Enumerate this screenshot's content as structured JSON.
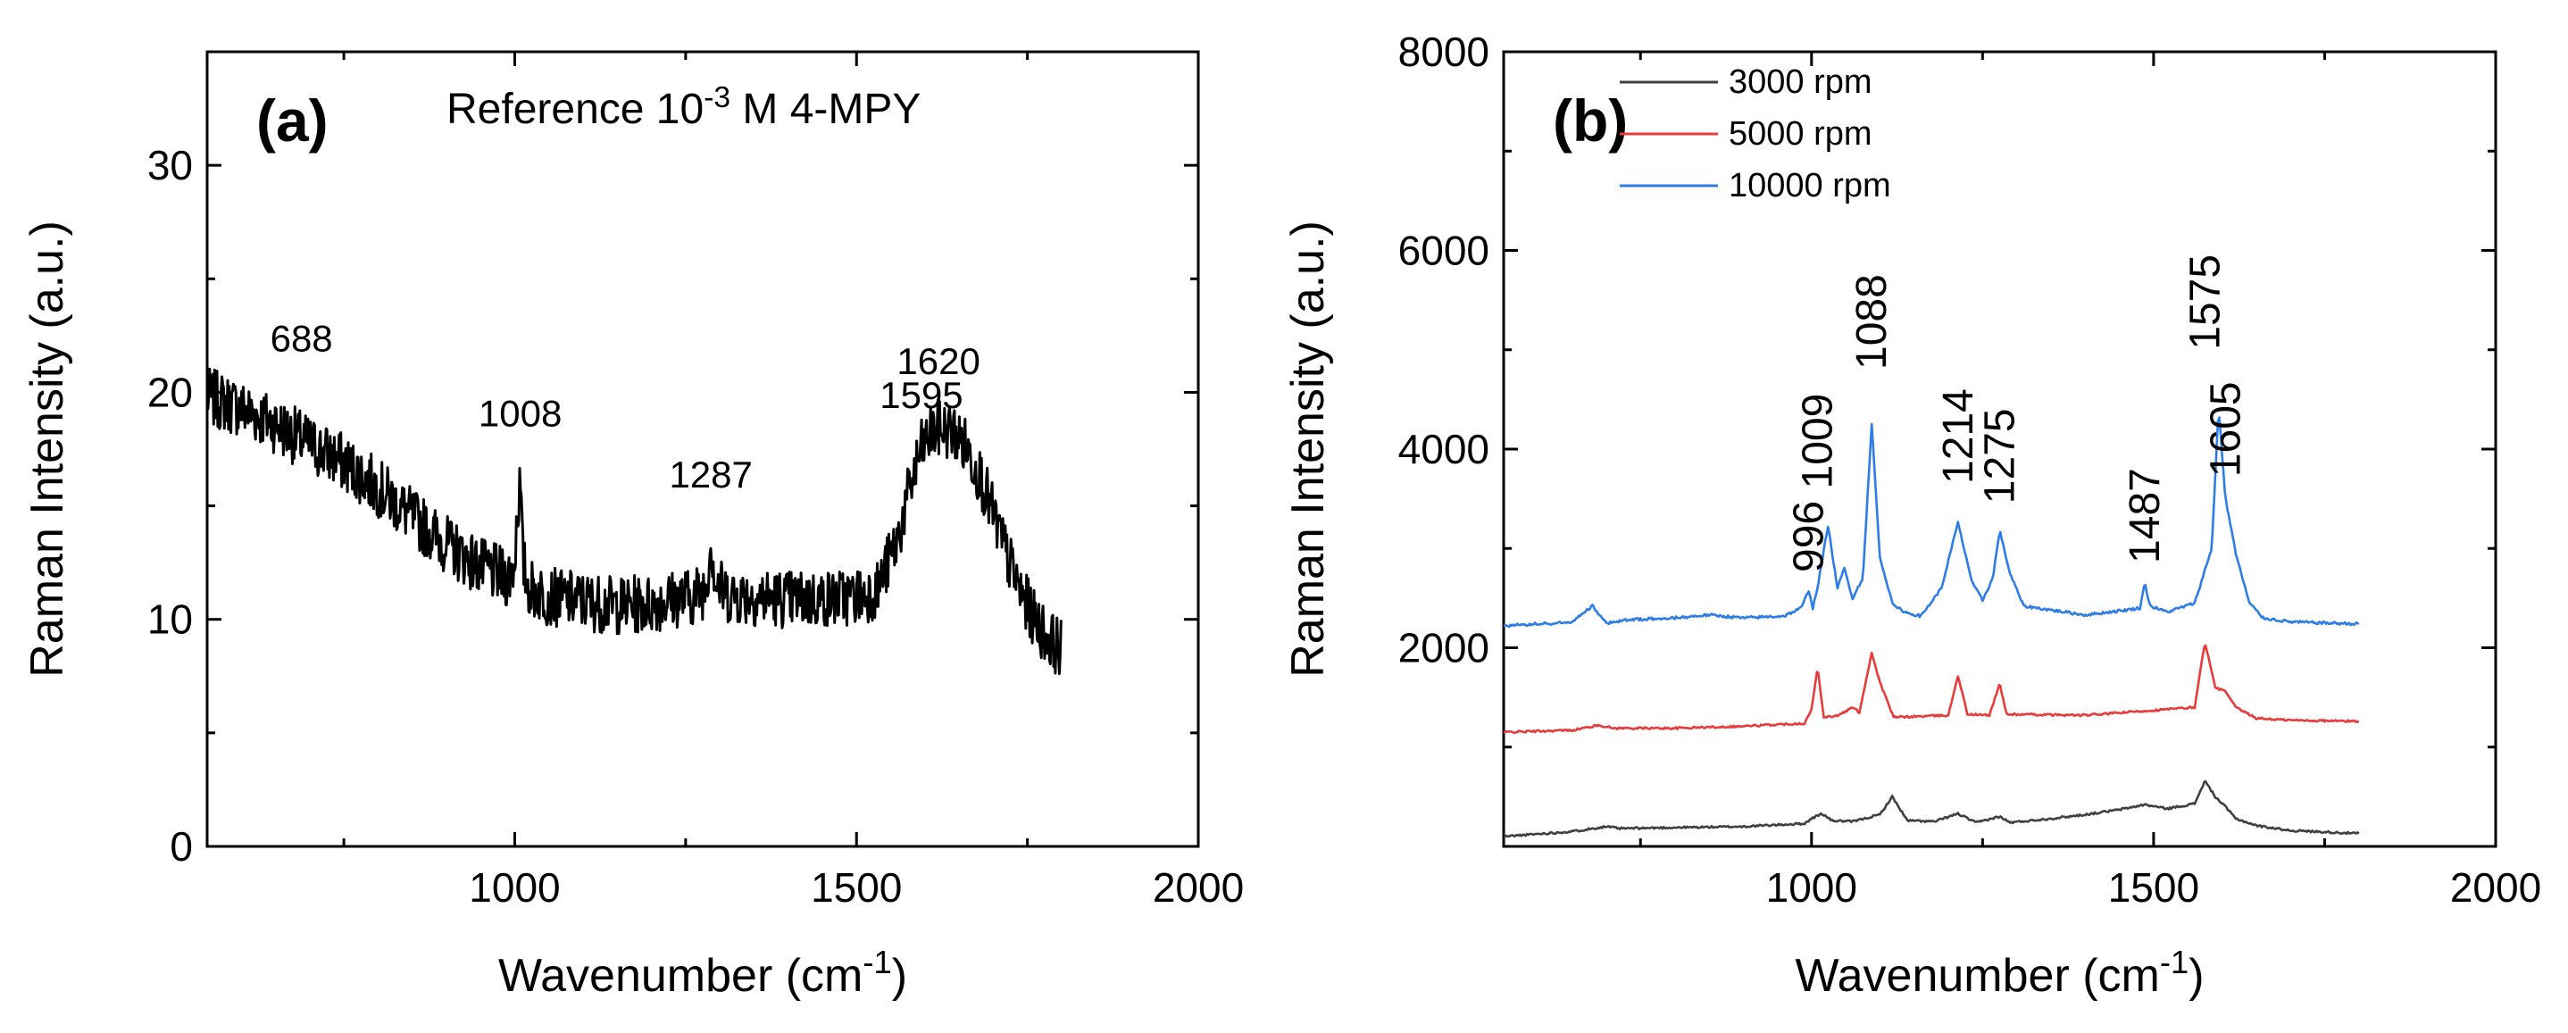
{
  "chart_data": [
    {
      "panel": "(a)",
      "type": "line",
      "title": "Reference 10",
      "title_sup": "-3",
      "title_tail": " M 4-MPY",
      "xlabel": "Wavenumber (cm",
      "xlabel_sup": "-1",
      "xlabel_tail": ")",
      "ylabel": "Raman Intensity (a.u.)",
      "xlim": [
        550,
        2000
      ],
      "ylim": [
        0,
        35
      ],
      "xticks": [
        1000,
        1500,
        2000
      ],
      "yticks": [
        0,
        10,
        20,
        30
      ],
      "color": "#000000",
      "series": [
        {
          "x": [
            550,
            600,
            650,
            700,
            750,
            800,
            850,
            900,
            950,
            990,
            1000,
            1003,
            1008,
            1012,
            1020,
            1050,
            1100,
            1150,
            1200,
            1230,
            1260,
            1280,
            1287,
            1294,
            1310,
            1350,
            1400,
            1450,
            1500,
            1530,
            1560,
            1580,
            1595,
            1610,
            1620,
            1640,
            1660,
            1680,
            1700,
            1720,
            1740,
            1760,
            1780,
            1800
          ],
          "y": [
            19.8,
            19.3,
            18.6,
            17.7,
            16.9,
            15.8,
            14.5,
            13.3,
            12.3,
            11.8,
            12.5,
            14.5,
            16.0,
            12.5,
            11.4,
            11.0,
            10.8,
            10.6,
            10.7,
            10.9,
            11.0,
            11.4,
            13.5,
            11.6,
            11.1,
            11.0,
            10.9,
            10.9,
            11.0,
            11.3,
            13.5,
            16.0,
            17.5,
            18.2,
            18.4,
            18.3,
            17.6,
            16.4,
            14.6,
            12.8,
            11.2,
            10.0,
            9.2,
            8.7
          ]
        }
      ],
      "peak_labels": [
        {
          "text": "688",
          "x": 688,
          "y": 21.8
        },
        {
          "text": "1008",
          "x": 1008,
          "y": 18.5
        },
        {
          "text": "1287",
          "x": 1287,
          "y": 15.8
        },
        {
          "text": "1595",
          "x": 1595,
          "y": 19.3
        },
        {
          "text": "1620",
          "x": 1620,
          "y": 20.8
        }
      ]
    },
    {
      "panel": "(b)",
      "type": "line",
      "xlabel": "Wavenumber (cm",
      "xlabel_sup": "-1",
      "xlabel_tail": ")",
      "ylabel": "Raman Intensity (a.u.)",
      "xlim": [
        550,
        2000
      ],
      "ylim": [
        0,
        8000
      ],
      "xticks": [
        1000,
        1500,
        2000
      ],
      "yticks": [
        2000,
        4000,
        6000,
        8000
      ],
      "legend_position": "top-left",
      "series": [
        {
          "name": "3000 rpm",
          "color": "#404040",
          "x": [
            550,
            650,
            700,
            720,
            800,
            900,
            990,
            1000,
            1015,
            1030,
            1060,
            1100,
            1118,
            1140,
            1180,
            1214,
            1240,
            1275,
            1290,
            1350,
            1400,
            1450,
            1487,
            1520,
            1560,
            1575,
            1590,
            1605,
            1620,
            1650,
            1700,
            1800
          ],
          "y": [
            100,
            150,
            200,
            180,
            190,
            200,
            230,
            280,
            330,
            260,
            250,
            320,
            500,
            260,
            250,
            330,
            240,
            300,
            240,
            280,
            320,
            370,
            420,
            380,
            430,
            660,
            500,
            400,
            280,
            210,
            160,
            130
          ]
        },
        {
          "name": "5000 rpm",
          "color": "#e83b3b",
          "x": [
            550,
            650,
            690,
            710,
            800,
            900,
            990,
            1000,
            1009,
            1018,
            1040,
            1060,
            1070,
            1088,
            1100,
            1120,
            1200,
            1214,
            1228,
            1260,
            1275,
            1285,
            1400,
            1500,
            1560,
            1575,
            1590,
            1605,
            1620,
            1650,
            1700,
            1800
          ],
          "y": [
            1150,
            1170,
            1220,
            1190,
            1190,
            1210,
            1240,
            1380,
            1800,
            1300,
            1320,
            1400,
            1350,
            1950,
            1650,
            1300,
            1320,
            1720,
            1330,
            1320,
            1640,
            1330,
            1320,
            1370,
            1400,
            2060,
            1600,
            1560,
            1400,
            1290,
            1270,
            1260
          ]
        },
        {
          "name": "10000 rpm",
          "color": "#2e7de6",
          "x": [
            550,
            650,
            680,
            700,
            730,
            800,
            850,
            900,
            960,
            985,
            996,
            1002,
            1010,
            1024,
            1038,
            1048,
            1060,
            1075,
            1088,
            1100,
            1120,
            1140,
            1160,
            1190,
            1214,
            1235,
            1250,
            1265,
            1275,
            1290,
            1310,
            1400,
            1460,
            1480,
            1487,
            1495,
            1520,
            1560,
            1585,
            1595,
            1605,
            1615,
            1620,
            1640,
            1660,
            1700,
            1800
          ],
          "y": [
            2220,
            2260,
            2420,
            2250,
            2280,
            2300,
            2330,
            2300,
            2320,
            2400,
            2580,
            2400,
            2650,
            3230,
            2600,
            2800,
            2500,
            2700,
            4250,
            2900,
            2420,
            2350,
            2320,
            2600,
            3260,
            2650,
            2480,
            2700,
            3180,
            2750,
            2420,
            2330,
            2380,
            2400,
            2650,
            2420,
            2360,
            2450,
            3000,
            4420,
            3500,
            3150,
            2950,
            2450,
            2300,
            2260,
            2240
          ]
        }
      ],
      "peak_labels": [
        {
          "text": "996",
          "x": 996,
          "y": 2760
        },
        {
          "text": "1009",
          "x": 1009,
          "y": 3600
        },
        {
          "text": "1088",
          "x": 1088,
          "y": 4800
        },
        {
          "text": "1214",
          "x": 1214,
          "y": 3650
        },
        {
          "text": "1275",
          "x": 1275,
          "y": 3450
        },
        {
          "text": "1487",
          "x": 1487,
          "y": 2850
        },
        {
          "text": "1575",
          "x": 1575,
          "y": 5000
        },
        {
          "text": "1605",
          "x": 1605,
          "y": 3720
        }
      ]
    }
  ]
}
